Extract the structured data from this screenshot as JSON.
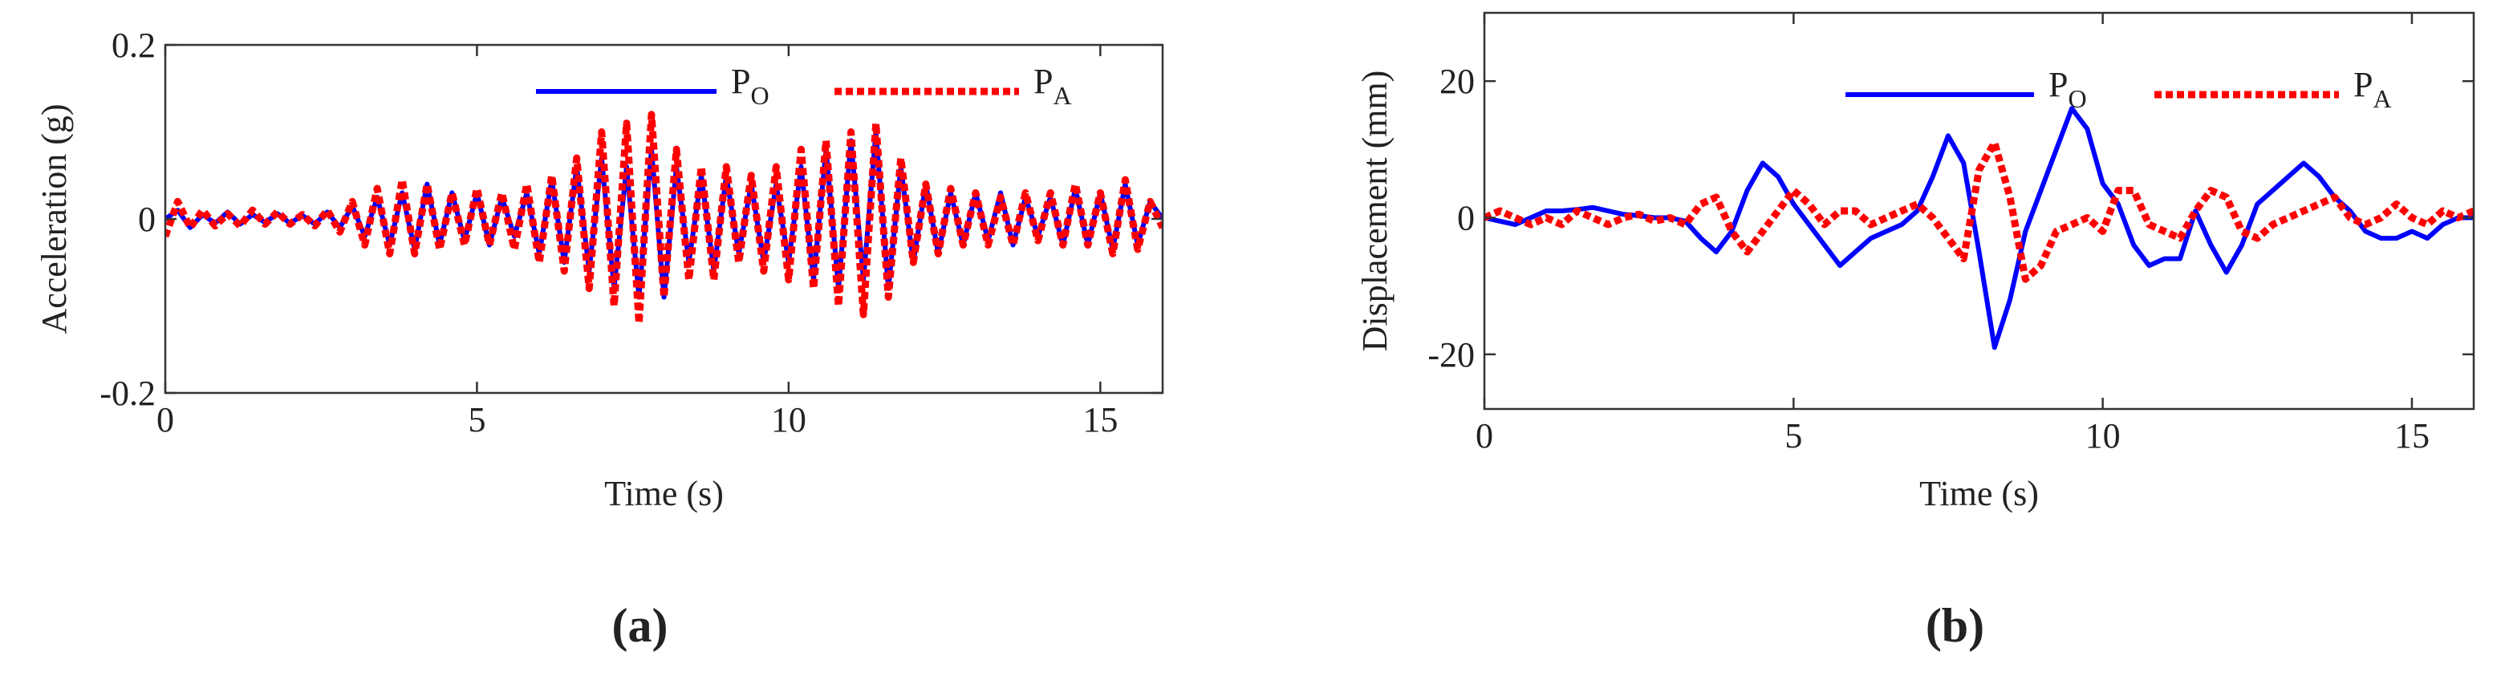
{
  "chart_data": [
    {
      "type": "line",
      "panel_label": "(a)",
      "xlabel": "Time (s)",
      "ylabel": "Acceleration (g)",
      "xlim": [
        0,
        16
      ],
      "ylim": [
        -0.2,
        0.2
      ],
      "xticks": [
        0,
        5,
        10,
        15
      ],
      "yticks": [
        -0.2,
        0,
        0.2
      ],
      "legend": "top-right",
      "x": [
        0,
        0.2,
        0.4,
        0.6,
        0.8,
        1,
        1.2,
        1.4,
        1.6,
        1.8,
        2,
        2.2,
        2.4,
        2.6,
        2.8,
        3,
        3.2,
        3.4,
        3.6,
        3.8,
        4,
        4.2,
        4.4,
        4.6,
        4.8,
        5,
        5.2,
        5.4,
        5.6,
        5.8,
        6,
        6.2,
        6.4,
        6.6,
        6.8,
        7,
        7.2,
        7.4,
        7.6,
        7.8,
        8,
        8.2,
        8.4,
        8.6,
        8.8,
        9,
        9.2,
        9.4,
        9.6,
        9.8,
        10,
        10.2,
        10.4,
        10.6,
        10.8,
        11,
        11.2,
        11.4,
        11.6,
        11.8,
        12,
        12.2,
        12.4,
        12.6,
        12.8,
        13,
        13.2,
        13.4,
        13.6,
        13.8,
        14,
        14.2,
        14.4,
        14.6,
        14.8,
        15,
        15.2,
        15.4,
        15.6,
        15.8,
        16
      ],
      "series": [
        {
          "name": "PO",
          "color": "#0000ff",
          "style": "solid",
          "values": [
            0,
            0.01,
            -0.01,
            0.005,
            -0.005,
            0.008,
            -0.006,
            0.005,
            -0.004,
            0.006,
            -0.005,
            0.004,
            -0.006,
            0.008,
            -0.01,
            0.015,
            -0.02,
            0.025,
            -0.03,
            0.03,
            -0.035,
            0.04,
            -0.03,
            0.03,
            -0.025,
            0.03,
            -0.03,
            0.025,
            -0.02,
            0.03,
            -0.04,
            0.045,
            -0.05,
            0.06,
            -0.06,
            0.07,
            -0.08,
            0.06,
            -0.09,
            0.08,
            -0.09,
            0.06,
            -0.05,
            0.05,
            -0.06,
            0.05,
            -0.04,
            0.04,
            -0.05,
            0.04,
            -0.05,
            0.06,
            -0.07,
            0.08,
            -0.08,
            0.09,
            -0.07,
            0.1,
            -0.08,
            0.06,
            -0.05,
            0.04,
            -0.04,
            0.03,
            -0.03,
            0.03,
            -0.025,
            0.03,
            -0.03,
            0.025,
            -0.02,
            0.025,
            -0.03,
            0.035,
            -0.03,
            0.03,
            -0.035,
            0.04,
            -0.03,
            0.02,
            0
          ]
        },
        {
          "name": "PA",
          "color": "#ff0000",
          "style": "dotted",
          "values": [
            -0.02,
            0.02,
            -0.01,
            0.01,
            -0.008,
            0.006,
            -0.008,
            0.01,
            -0.006,
            0.008,
            -0.006,
            0.005,
            -0.008,
            0.01,
            -0.015,
            0.02,
            -0.03,
            0.035,
            -0.04,
            0.045,
            -0.04,
            0.04,
            -0.035,
            0.03,
            -0.03,
            0.035,
            -0.03,
            0.03,
            -0.035,
            0.04,
            -0.05,
            0.05,
            -0.06,
            0.07,
            -0.08,
            0.1,
            -0.1,
            0.11,
            -0.12,
            0.12,
            -0.09,
            0.08,
            -0.07,
            0.06,
            -0.07,
            0.06,
            -0.05,
            0.05,
            -0.06,
            0.06,
            -0.07,
            0.08,
            -0.08,
            0.09,
            -0.1,
            0.1,
            -0.11,
            0.11,
            -0.09,
            0.07,
            -0.05,
            0.04,
            -0.04,
            0.035,
            -0.03,
            0.03,
            -0.03,
            0.025,
            -0.03,
            0.03,
            -0.025,
            0.03,
            -0.03,
            0.04,
            -0.03,
            0.03,
            -0.04,
            0.045,
            -0.035,
            0.02,
            -0.01
          ]
        }
      ]
    },
    {
      "type": "line",
      "panel_label": "(b)",
      "xlabel": "Time (s)",
      "ylabel": "Displacement (mm)",
      "xlim": [
        0,
        16
      ],
      "ylim": [
        -28,
        30
      ],
      "xticks": [
        0,
        5,
        10,
        15
      ],
      "yticks": [
        -20,
        0,
        20
      ],
      "legend": "top-right",
      "x": [
        0,
        0.25,
        0.5,
        0.75,
        1,
        1.25,
        1.5,
        1.75,
        2,
        2.25,
        2.5,
        2.75,
        3,
        3.25,
        3.5,
        3.75,
        4,
        4.25,
        4.5,
        4.75,
        5,
        5.25,
        5.5,
        5.75,
        6,
        6.25,
        6.5,
        6.75,
        7,
        7.25,
        7.5,
        7.75,
        8,
        8.25,
        8.5,
        8.75,
        9,
        9.25,
        9.5,
        9.75,
        10,
        10.25,
        10.5,
        10.75,
        11,
        11.25,
        11.5,
        11.75,
        12,
        12.25,
        12.5,
        12.75,
        13,
        13.25,
        13.5,
        13.75,
        14,
        14.25,
        14.5,
        14.75,
        15,
        15.25,
        15.5,
        15.75,
        16
      ],
      "series": [
        {
          "name": "PO",
          "color": "#0000ff",
          "style": "solid",
          "values": [
            0,
            -0.5,
            -1,
            0,
            1,
            1,
            1.2,
            1.5,
            1,
            0.5,
            0.3,
            0,
            0,
            -0.5,
            -3,
            -5,
            -2,
            4,
            8,
            6,
            2,
            -1,
            -4,
            -7,
            -5,
            -3,
            -2,
            -1,
            1,
            6,
            12,
            8,
            -5,
            -19,
            -12,
            -2,
            4,
            10,
            16,
            13,
            5,
            2,
            -4,
            -7,
            -6,
            -6,
            1,
            -4,
            -8,
            -4,
            2,
            4,
            6,
            8,
            6,
            3,
            1,
            -2,
            -3,
            -3,
            -2,
            -3,
            -1,
            0,
            0
          ]
        },
        {
          "name": "PA",
          "color": "#ff0000",
          "style": "dotted",
          "values": [
            0,
            1,
            0,
            -1,
            0,
            -1,
            1,
            0,
            -1,
            0,
            0.5,
            -0.5,
            0,
            -1,
            2,
            3,
            -2,
            -5,
            -2,
            1,
            4,
            2,
            -1,
            1,
            1,
            -1,
            0,
            1,
            2,
            0,
            -3,
            -6,
            7,
            11,
            3,
            -9,
            -7,
            -2,
            -1,
            0,
            -2,
            4,
            4,
            -1,
            -2,
            -3,
            1,
            4,
            3,
            -2,
            -3,
            -1,
            0,
            1,
            2,
            3,
            0,
            -1,
            0,
            2,
            0,
            -1,
            1,
            0,
            1
          ]
        }
      ]
    }
  ]
}
